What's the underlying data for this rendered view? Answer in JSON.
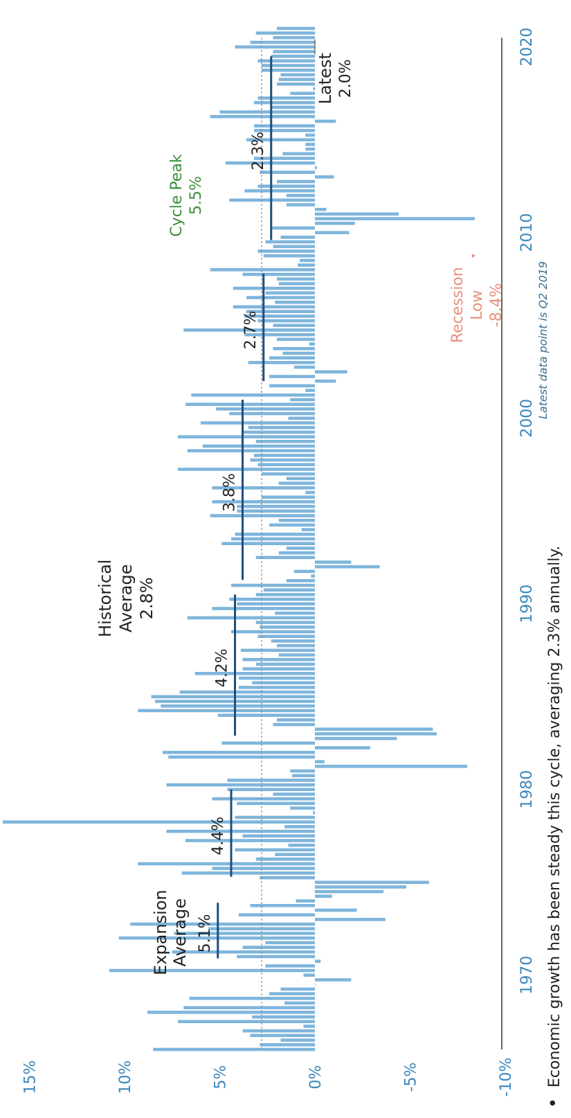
{
  "colors": {
    "bar": "#7fb5dc",
    "tick_label": "#3a86ba",
    "segment": "#1f4e7a",
    "text": "#222222",
    "cycle_peak": "#3a8f3a",
    "recession": "#e8917d",
    "note": "#3a6d8a",
    "axis": "#333333",
    "dotted_line": "#888888"
  },
  "caption": {
    "bullet": "•",
    "text": "Economic growth has been steady this cycle, averaging 2.3% annually."
  },
  "note": "Latest data point is Q2 2019",
  "chart_data": {
    "type": "bar",
    "orientation": "rotated (time runs up the page, value axis horizontal)",
    "value_axis": {
      "ticks": [
        15,
        10,
        5,
        0,
        -5,
        -10
      ],
      "tick_labels": [
        "15%",
        "10%",
        "5%",
        "0%",
        "-5%",
        "-10%"
      ],
      "range": [
        -10,
        17
      ]
    },
    "time_axis": {
      "ticks": [
        1970,
        1980,
        1990,
        2000,
        2010,
        2020
      ],
      "tick_labels": [
        "1970",
        "1980",
        "1990",
        "2000",
        "2010",
        "2020"
      ],
      "range": [
        1966,
        2020.5
      ]
    },
    "historical_average": {
      "value": 2.8,
      "label_lines": [
        "Historical",
        "Average",
        "2.8%"
      ]
    },
    "expansion_average_label": [
      "Expansion",
      "Average"
    ],
    "expansions": [
      {
        "start": 1970.9,
        "end": 1973.9,
        "avg": 5.1,
        "label": "5.1%"
      },
      {
        "start": 1975.3,
        "end": 1980.0,
        "avg": 4.4,
        "label": "4.4%"
      },
      {
        "start": 1982.9,
        "end": 1990.5,
        "avg": 4.2,
        "label": "4.2%"
      },
      {
        "start": 1991.3,
        "end": 2001.0,
        "avg": 3.8,
        "label": "3.8%"
      },
      {
        "start": 2002.0,
        "end": 2007.8,
        "avg": 2.7,
        "label": "2.7%"
      },
      {
        "start": 2009.6,
        "end": 2019.5,
        "avg": 2.3,
        "label": "2.3%"
      }
    ],
    "annotations": {
      "cycle_peak": {
        "lines": [
          "Cycle Peak",
          "5.5%"
        ],
        "value": 5.5
      },
      "recession_low": {
        "lines": [
          "Recession",
          "Low",
          "-8.4%"
        ],
        "value": -8.4,
        "date": 2008.75
      },
      "latest": {
        "lines": [
          "Latest",
          "2.0%"
        ],
        "value": 2.0,
        "date": 2019.5
      }
    },
    "series": [
      {
        "start": 1966.0,
        "step": 0.25,
        "values": [
          8.5,
          2.9,
          1.8,
          3.4,
          3.8,
          0.6,
          7.2,
          3.3,
          8.8,
          6.9,
          1.6,
          6.6,
          2.4,
          1.8,
          0.0,
          -1.9,
          0.6,
          10.8,
          2.6,
          -0.3,
          4.1,
          7.5,
          3.8,
          2.6,
          10.3,
          7.4,
          5.6,
          9.7,
          -3.7,
          4.0,
          -2.2,
          3.4,
          1.0,
          -0.9,
          -3.6,
          -4.8,
          -6.0,
          2.9,
          7.0,
          5.4,
          9.3,
          3.1,
          2.1,
          4.2,
          1.4,
          6.8,
          3.8,
          7.8,
          1.6,
          16.4,
          4.2,
          0.1,
          1.3,
          4.1,
          5.4,
          2.2,
          4.6,
          7.8,
          4.6,
          1.2,
          1.3,
          -8.0,
          -0.5,
          7.7,
          8.0,
          -2.9,
          4.9,
          -4.3,
          -6.4,
          -6.2,
          2.2,
          2.0,
          5.1,
          9.3,
          8.1,
          8.4,
          8.6,
          7.1,
          4.0,
          3.3,
          4.0,
          6.3,
          3.8,
          3.1,
          3.8,
          1.9,
          3.9,
          2.0,
          2.3,
          3.0,
          4.4,
          2.9,
          3.1,
          6.7,
          2.1,
          5.4,
          4.1,
          4.5,
          3.1,
          2.7,
          4.4,
          1.5,
          0.2,
          1.1,
          -3.4,
          -1.9,
          3.1,
          1.9,
          1.5,
          4.9,
          4.4,
          4.2,
          0.7,
          2.4,
          1.9,
          5.5,
          4.1,
          4.1,
          5.4,
          2.8,
          0.5,
          5.4,
          1.9,
          1.5,
          2.8,
          7.2,
          3.0,
          3.4,
          3.2,
          6.7,
          5.9,
          3.1,
          7.2,
          3.8,
          3.5,
          6.0,
          1.4,
          4.5,
          5.2,
          6.8,
          1.3,
          6.5,
          0.5,
          2.4,
          -1.1,
          2.4,
          -1.7,
          1.1,
          3.5,
          2.4,
          1.7,
          2.2,
          0.3,
          2.0,
          3.7,
          6.9,
          2.2,
          3.0,
          3.7,
          3.6,
          4.3,
          2.1,
          3.6,
          2.6,
          4.3,
          1.9,
          2.0,
          3.8,
          5.5,
          0.9,
          0.8,
          2.7,
          3.0,
          2.2,
          2.6,
          1.8,
          -1.8,
          2.3,
          -2.1,
          -8.4,
          -4.4,
          -0.6,
          1.5,
          4.5,
          1.5,
          3.7,
          3.0,
          2.0,
          -1.0,
          2.9,
          -0.1,
          4.7,
          3.2,
          1.7,
          0.5,
          0.5,
          3.6,
          0.5,
          3.2,
          3.2,
          -1.1,
          5.5,
          5.0,
          2.3,
          3.2,
          3.0,
          1.3,
          0.1,
          2.0,
          1.9,
          1.8,
          2.8,
          2.8,
          3.0,
          2.3,
          2.2,
          4.2,
          3.4,
          2.2,
          3.1,
          2.0
        ]
      }
    ]
  }
}
